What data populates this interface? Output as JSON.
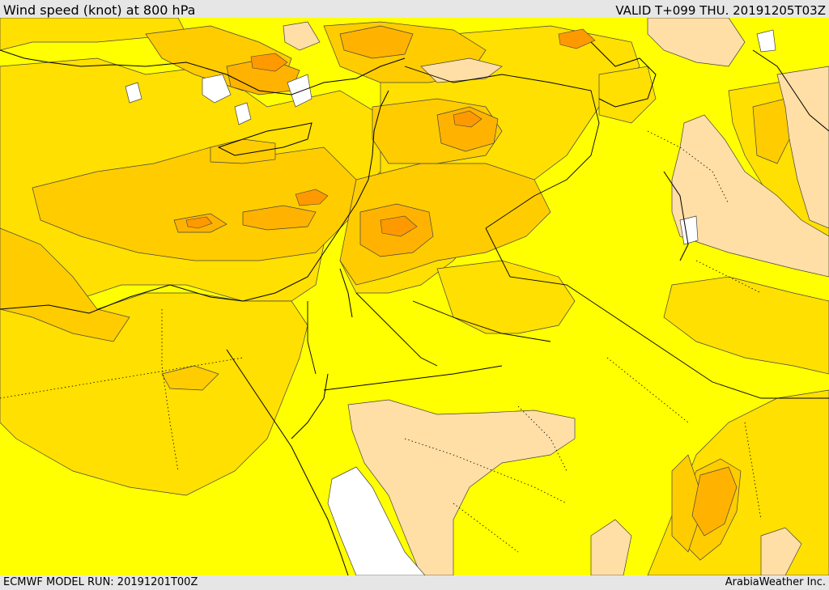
{
  "header": {
    "title": "Wind speed (knot) at 800 hPa",
    "valid": "VALID T+099 THU. 20191205T03Z"
  },
  "footer": {
    "model_run": "ECMWF MODEL RUN: 20191201T00Z",
    "credit": "ArabiaWeather Inc."
  },
  "map": {
    "field": "wind speed",
    "level": "800 hPa",
    "legend_visible": false,
    "colors": {
      "background_yellow": "#ffff00",
      "light_gold": "#ffe000",
      "gold": "#ffcc00",
      "orange_light": "#ffb300",
      "orange": "#ff9900",
      "peach": "#ffdfa6",
      "white": "#ffffff",
      "coast_line": "#000000"
    }
  }
}
